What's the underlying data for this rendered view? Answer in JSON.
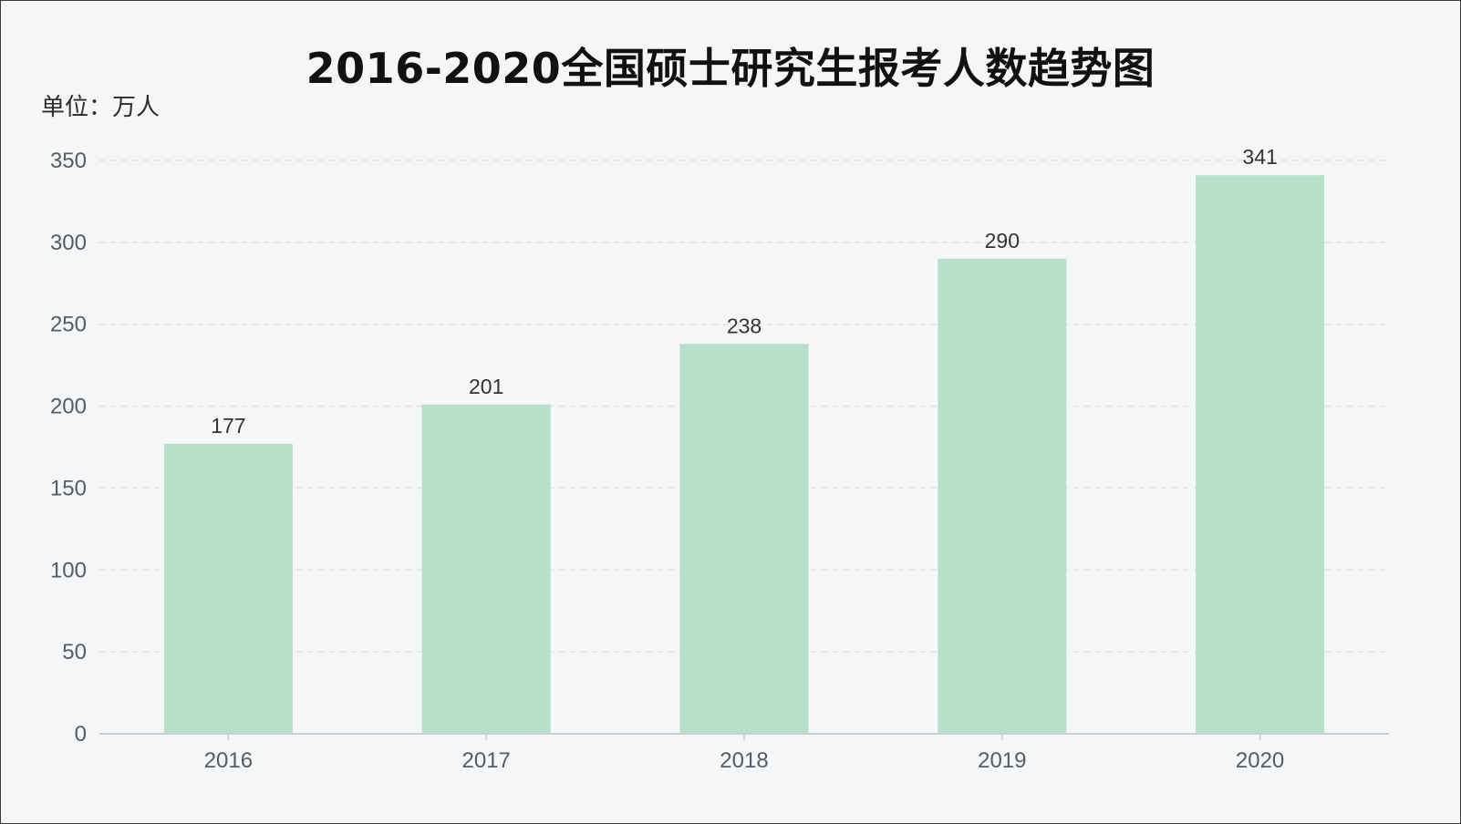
{
  "chart_data": {
    "type": "bar",
    "title": "2016-2020全国硕士研究生报考人数趋势图",
    "ylabel": "单位：万人",
    "xlabel": "",
    "categories": [
      "2016",
      "2017",
      "2018",
      "2019",
      "2020"
    ],
    "values": [
      177,
      201,
      238,
      290,
      341
    ],
    "ylim": [
      0,
      350
    ],
    "yticks": [
      0,
      50,
      100,
      150,
      200,
      250,
      300,
      350
    ],
    "grid": true,
    "grid_style": "dashed",
    "data_labels": true,
    "colors": {
      "bar": "#b7e0cb",
      "background": "#f4f6f8",
      "grid": "#dde3e6",
      "axis": "#c9ced3",
      "tick_text": "#555c66",
      "value_text": "#333333",
      "title_text": "#111111"
    }
  }
}
